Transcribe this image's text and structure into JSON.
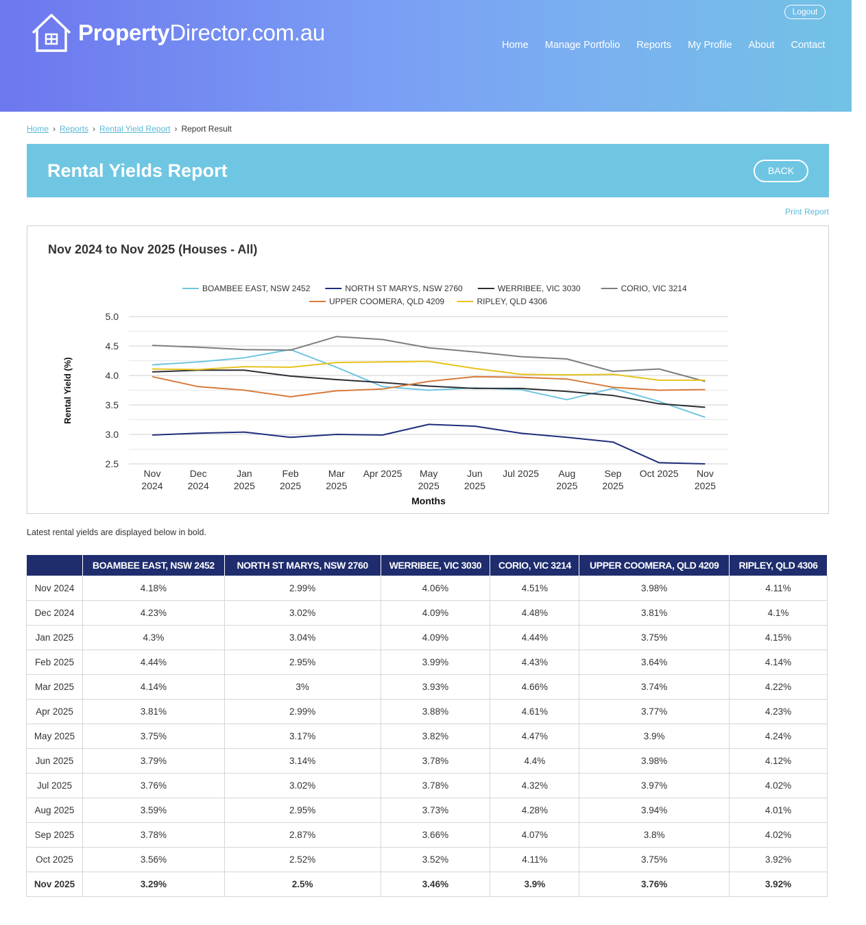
{
  "header": {
    "brand_bold": "Property",
    "brand_rest": "Director.com.au",
    "logout_label": "Logout",
    "nav": [
      "Home",
      "Manage Portfolio",
      "Reports",
      "My Profile",
      "About",
      "Contact"
    ]
  },
  "breadcrumb": {
    "items": [
      "Home",
      "Reports",
      "Rental Yield Report"
    ],
    "current": "Report Result"
  },
  "banner": {
    "title": "Rental Yields Report",
    "back_label": "BACK"
  },
  "print_label": "Print Report",
  "note": "Latest rental yields are displayed below in bold.",
  "chart_data": {
    "type": "line",
    "title": "Nov 2024 to Nov 2025 (Houses - All)",
    "xlabel": "Months",
    "ylabel": "Rental Yield (%)",
    "ylim": [
      2.5,
      5.0
    ],
    "yticks": [
      "5.0",
      "4.5",
      "4.0",
      "3.5",
      "3.0",
      "2.5"
    ],
    "legend_position": "top",
    "x_labels": [
      [
        "Nov",
        "2024"
      ],
      [
        "Dec",
        "2024"
      ],
      [
        "Jan",
        "2025"
      ],
      [
        "Feb",
        "2025"
      ],
      [
        "Mar",
        "2025"
      ],
      [
        "Apr 2025"
      ],
      [
        "May",
        "2025"
      ],
      [
        "Jun",
        "2025"
      ],
      [
        "Jul 2025"
      ],
      [
        "Aug",
        "2025"
      ],
      [
        "Sep",
        "2025"
      ],
      [
        "Oct 2025"
      ],
      [
        "Nov",
        "2025"
      ]
    ],
    "series": [
      {
        "name": "BOAMBEE EAST, NSW 2452",
        "color": "#6fc5e0",
        "values": [
          4.18,
          4.23,
          4.3,
          4.44,
          4.14,
          3.81,
          3.75,
          3.79,
          3.76,
          3.59,
          3.78,
          3.56,
          3.29
        ]
      },
      {
        "name": "NORTH ST MARYS, NSW 2760",
        "color": "#1f2d7a",
        "values": [
          2.99,
          3.02,
          3.04,
          2.95,
          3.0,
          2.99,
          3.17,
          3.14,
          3.02,
          2.95,
          2.87,
          2.52,
          2.5
        ]
      },
      {
        "name": "WERRIBEE, VIC 3030",
        "color": "#2b2f33",
        "values": [
          4.06,
          4.09,
          4.09,
          3.99,
          3.93,
          3.88,
          3.82,
          3.78,
          3.78,
          3.73,
          3.66,
          3.52,
          3.46
        ]
      },
      {
        "name": "CORIO, VIC 3214",
        "color": "#7a7e80",
        "values": [
          4.51,
          4.48,
          4.44,
          4.43,
          4.66,
          4.61,
          4.47,
          4.4,
          4.32,
          4.28,
          4.07,
          4.11,
          3.9
        ]
      },
      {
        "name": "UPPER COOMERA, QLD 4209",
        "color": "#d67a3a",
        "values": [
          3.98,
          3.81,
          3.75,
          3.64,
          3.74,
          3.77,
          3.9,
          3.98,
          3.97,
          3.94,
          3.8,
          3.75,
          3.76
        ]
      },
      {
        "name": "RIPLEY, QLD 4306",
        "color": "#e8c21c",
        "values": [
          4.11,
          4.1,
          4.15,
          4.14,
          4.22,
          4.23,
          4.24,
          4.12,
          4.02,
          4.01,
          4.02,
          3.92,
          3.92
        ]
      }
    ]
  },
  "table": {
    "headers": [
      "",
      "BOAMBEE EAST, NSW 2452",
      "NORTH ST MARYS, NSW 2760",
      "WERRIBEE, VIC 3030",
      "CORIO, VIC 3214",
      "UPPER COOMERA, QLD 4209",
      "RIPLEY, QLD 4306"
    ],
    "rows": [
      [
        "Nov 2024",
        "4.18%",
        "2.99%",
        "4.06%",
        "4.51%",
        "3.98%",
        "4.11%"
      ],
      [
        "Dec 2024",
        "4.23%",
        "3.02%",
        "4.09%",
        "4.48%",
        "3.81%",
        "4.1%"
      ],
      [
        "Jan 2025",
        "4.3%",
        "3.04%",
        "4.09%",
        "4.44%",
        "3.75%",
        "4.15%"
      ],
      [
        "Feb 2025",
        "4.44%",
        "2.95%",
        "3.99%",
        "4.43%",
        "3.64%",
        "4.14%"
      ],
      [
        "Mar 2025",
        "4.14%",
        "3%",
        "3.93%",
        "4.66%",
        "3.74%",
        "4.22%"
      ],
      [
        "Apr 2025",
        "3.81%",
        "2.99%",
        "3.88%",
        "4.61%",
        "3.77%",
        "4.23%"
      ],
      [
        "May 2025",
        "3.75%",
        "3.17%",
        "3.82%",
        "4.47%",
        "3.9%",
        "4.24%"
      ],
      [
        "Jun 2025",
        "3.79%",
        "3.14%",
        "3.78%",
        "4.4%",
        "3.98%",
        "4.12%"
      ],
      [
        "Jul 2025",
        "3.76%",
        "3.02%",
        "3.78%",
        "4.32%",
        "3.97%",
        "4.02%"
      ],
      [
        "Aug 2025",
        "3.59%",
        "2.95%",
        "3.73%",
        "4.28%",
        "3.94%",
        "4.01%"
      ],
      [
        "Sep 2025",
        "3.78%",
        "2.87%",
        "3.66%",
        "4.07%",
        "3.8%",
        "4.02%"
      ],
      [
        "Oct 2025",
        "3.56%",
        "2.52%",
        "3.52%",
        "4.11%",
        "3.75%",
        "3.92%"
      ],
      [
        "Nov 2025",
        "3.29%",
        "2.5%",
        "3.46%",
        "3.9%",
        "3.76%",
        "3.92%"
      ]
    ]
  }
}
